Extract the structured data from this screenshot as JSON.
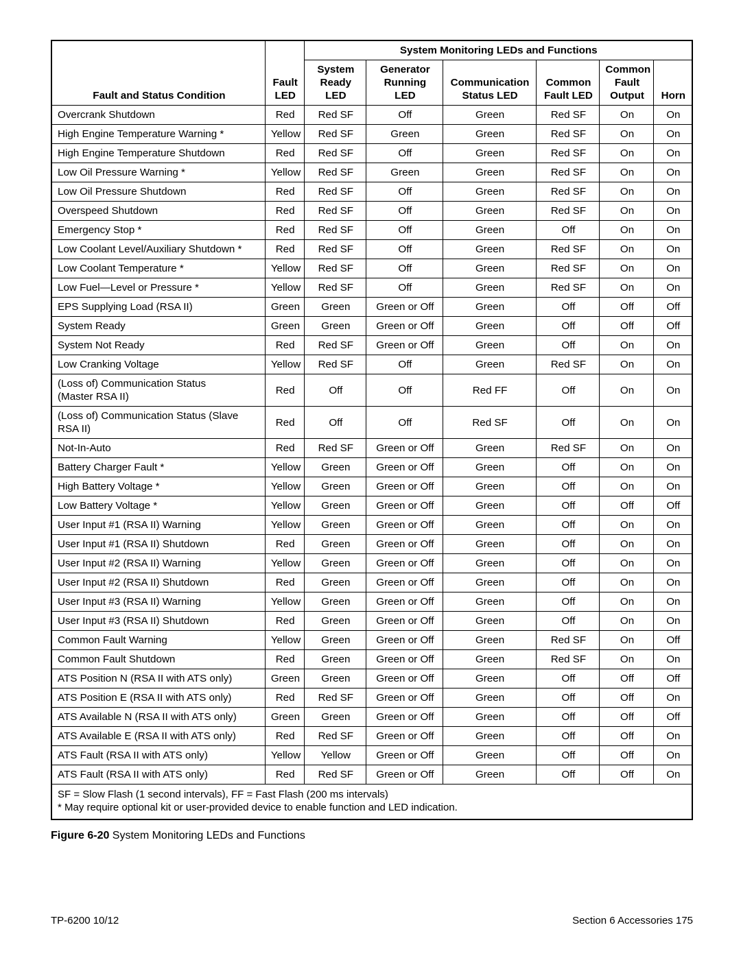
{
  "superHeader": "System Monitoring LEDs and Functions",
  "columns": [
    "Fault and Status Condition",
    "Fault\nLED",
    "System\nReady LED",
    "Generator\nRunning\nLED",
    "Communication\nStatus LED",
    "Common\nFault LED",
    "Common\nFault\nOutput",
    "Horn"
  ],
  "rows": [
    [
      "Overcrank Shutdown",
      "Red",
      "Red SF",
      "Off",
      "Green",
      "Red SF",
      "On",
      "On"
    ],
    [
      "High Engine Temperature Warning *",
      "Yellow",
      "Red SF",
      "Green",
      "Green",
      "Red SF",
      "On",
      "On"
    ],
    [
      "High Engine Temperature Shutdown",
      "Red",
      "Red SF",
      "Off",
      "Green",
      "Red SF",
      "On",
      "On"
    ],
    [
      "Low Oil Pressure Warning *",
      "Yellow",
      "Red SF",
      "Green",
      "Green",
      "Red SF",
      "On",
      "On"
    ],
    [
      "Low Oil Pressure Shutdown",
      "Red",
      "Red SF",
      "Off",
      "Green",
      "Red SF",
      "On",
      "On"
    ],
    [
      "Overspeed Shutdown",
      "Red",
      "Red SF",
      "Off",
      "Green",
      "Red SF",
      "On",
      "On"
    ],
    [
      "Emergency Stop *",
      "Red",
      "Red SF",
      "Off",
      "Green",
      "Off",
      "On",
      "On"
    ],
    [
      "Low Coolant Level/Auxiliary Shutdown *",
      "Red",
      "Red SF",
      "Off",
      "Green",
      "Red SF",
      "On",
      "On"
    ],
    [
      "Low Coolant Temperature *",
      "Yellow",
      "Red SF",
      "Off",
      "Green",
      "Red SF",
      "On",
      "On"
    ],
    [
      "Low Fuel—Level or Pressure *",
      "Yellow",
      "Red SF",
      "Off",
      "Green",
      "Red SF",
      "On",
      "On"
    ],
    [
      "EPS Supplying Load (RSA II)",
      "Green",
      "Green",
      "Green or Off",
      "Green",
      "Off",
      "Off",
      "Off"
    ],
    [
      "System Ready",
      "Green",
      "Green",
      "Green or Off",
      "Green",
      "Off",
      "Off",
      "Off"
    ],
    [
      "System Not Ready",
      "Red",
      "Red SF",
      "Green or Off",
      "Green",
      "Off",
      "On",
      "On"
    ],
    [
      "Low Cranking Voltage",
      "Yellow",
      "Red SF",
      "Off",
      "Green",
      "Red SF",
      "On",
      "On"
    ],
    [
      "(Loss of) Communication Status\n(Master RSA II)",
      "Red",
      "Off",
      "Off",
      "Red FF",
      "Off",
      "On",
      "On"
    ],
    [
      "(Loss of) Communication Status (Slave RSA II)",
      "Red",
      "Off",
      "Off",
      "Red SF",
      "Off",
      "On",
      "On"
    ],
    [
      "Not-In-Auto",
      "Red",
      "Red SF",
      "Green or Off",
      "Green",
      "Red SF",
      "On",
      "On"
    ],
    [
      "Battery Charger Fault *",
      "Yellow",
      "Green",
      "Green or Off",
      "Green",
      "Off",
      "On",
      "On"
    ],
    [
      "High Battery Voltage *",
      "Yellow",
      "Green",
      "Green or Off",
      "Green",
      "Off",
      "On",
      "On"
    ],
    [
      "Low Battery Voltage *",
      "Yellow",
      "Green",
      "Green or Off",
      "Green",
      "Off",
      "Off",
      "Off"
    ],
    [
      "User Input #1 (RSA II) Warning",
      "Yellow",
      "Green",
      "Green or Off",
      "Green",
      "Off",
      "On",
      "On"
    ],
    [
      "User Input #1 (RSA II) Shutdown",
      "Red",
      "Green",
      "Green or Off",
      "Green",
      "Off",
      "On",
      "On"
    ],
    [
      "User Input #2 (RSA II) Warning",
      "Yellow",
      "Green",
      "Green or Off",
      "Green",
      "Off",
      "On",
      "On"
    ],
    [
      "User Input #2 (RSA II) Shutdown",
      "Red",
      "Green",
      "Green or Off",
      "Green",
      "Off",
      "On",
      "On"
    ],
    [
      "User Input #3 (RSA II) Warning",
      "Yellow",
      "Green",
      "Green or Off",
      "Green",
      "Off",
      "On",
      "On"
    ],
    [
      "User Input #3 (RSA II) Shutdown",
      "Red",
      "Green",
      "Green or Off",
      "Green",
      "Off",
      "On",
      "On"
    ],
    [
      "Common Fault Warning",
      "Yellow",
      "Green",
      "Green or Off",
      "Green",
      "Red SF",
      "On",
      "Off"
    ],
    [
      "Common Fault Shutdown",
      "Red",
      "Green",
      "Green or Off",
      "Green",
      "Red SF",
      "On",
      "On"
    ],
    [
      "ATS Position N (RSA II with ATS only)",
      "Green",
      "Green",
      "Green or Off",
      "Green",
      "Off",
      "Off",
      "Off"
    ],
    [
      "ATS Position E (RSA II with ATS only)",
      "Red",
      "Red SF",
      "Green or Off",
      "Green",
      "Off",
      "Off",
      "On"
    ],
    [
      "ATS Available N (RSA II with ATS only)",
      "Green",
      "Green",
      "Green or Off",
      "Green",
      "Off",
      "Off",
      "Off"
    ],
    [
      "ATS Available E (RSA II with ATS only)",
      "Red",
      "Red SF",
      "Green or Off",
      "Green",
      "Off",
      "Off",
      "On"
    ],
    [
      "ATS Fault (RSA II with ATS only)",
      "Yellow",
      "Yellow",
      "Green or Off",
      "Green",
      "Off",
      "Off",
      "On"
    ],
    [
      "ATS Fault (RSA II with ATS only)",
      "Red",
      "Red SF",
      "Green or Off",
      "Green",
      "Off",
      "Off",
      "On"
    ]
  ],
  "note1": "SF = Slow Flash (1 second intervals), FF = Fast Flash (200 ms intervals)",
  "note2": "* May require optional kit or user-provided device to enable function and LED indication.",
  "captionBold": "Figure 6-20",
  "captionRest": "  System Monitoring LEDs and Functions",
  "footLeft": "TP-6200  10/12",
  "footRight": "Section 6  Accessories  175"
}
